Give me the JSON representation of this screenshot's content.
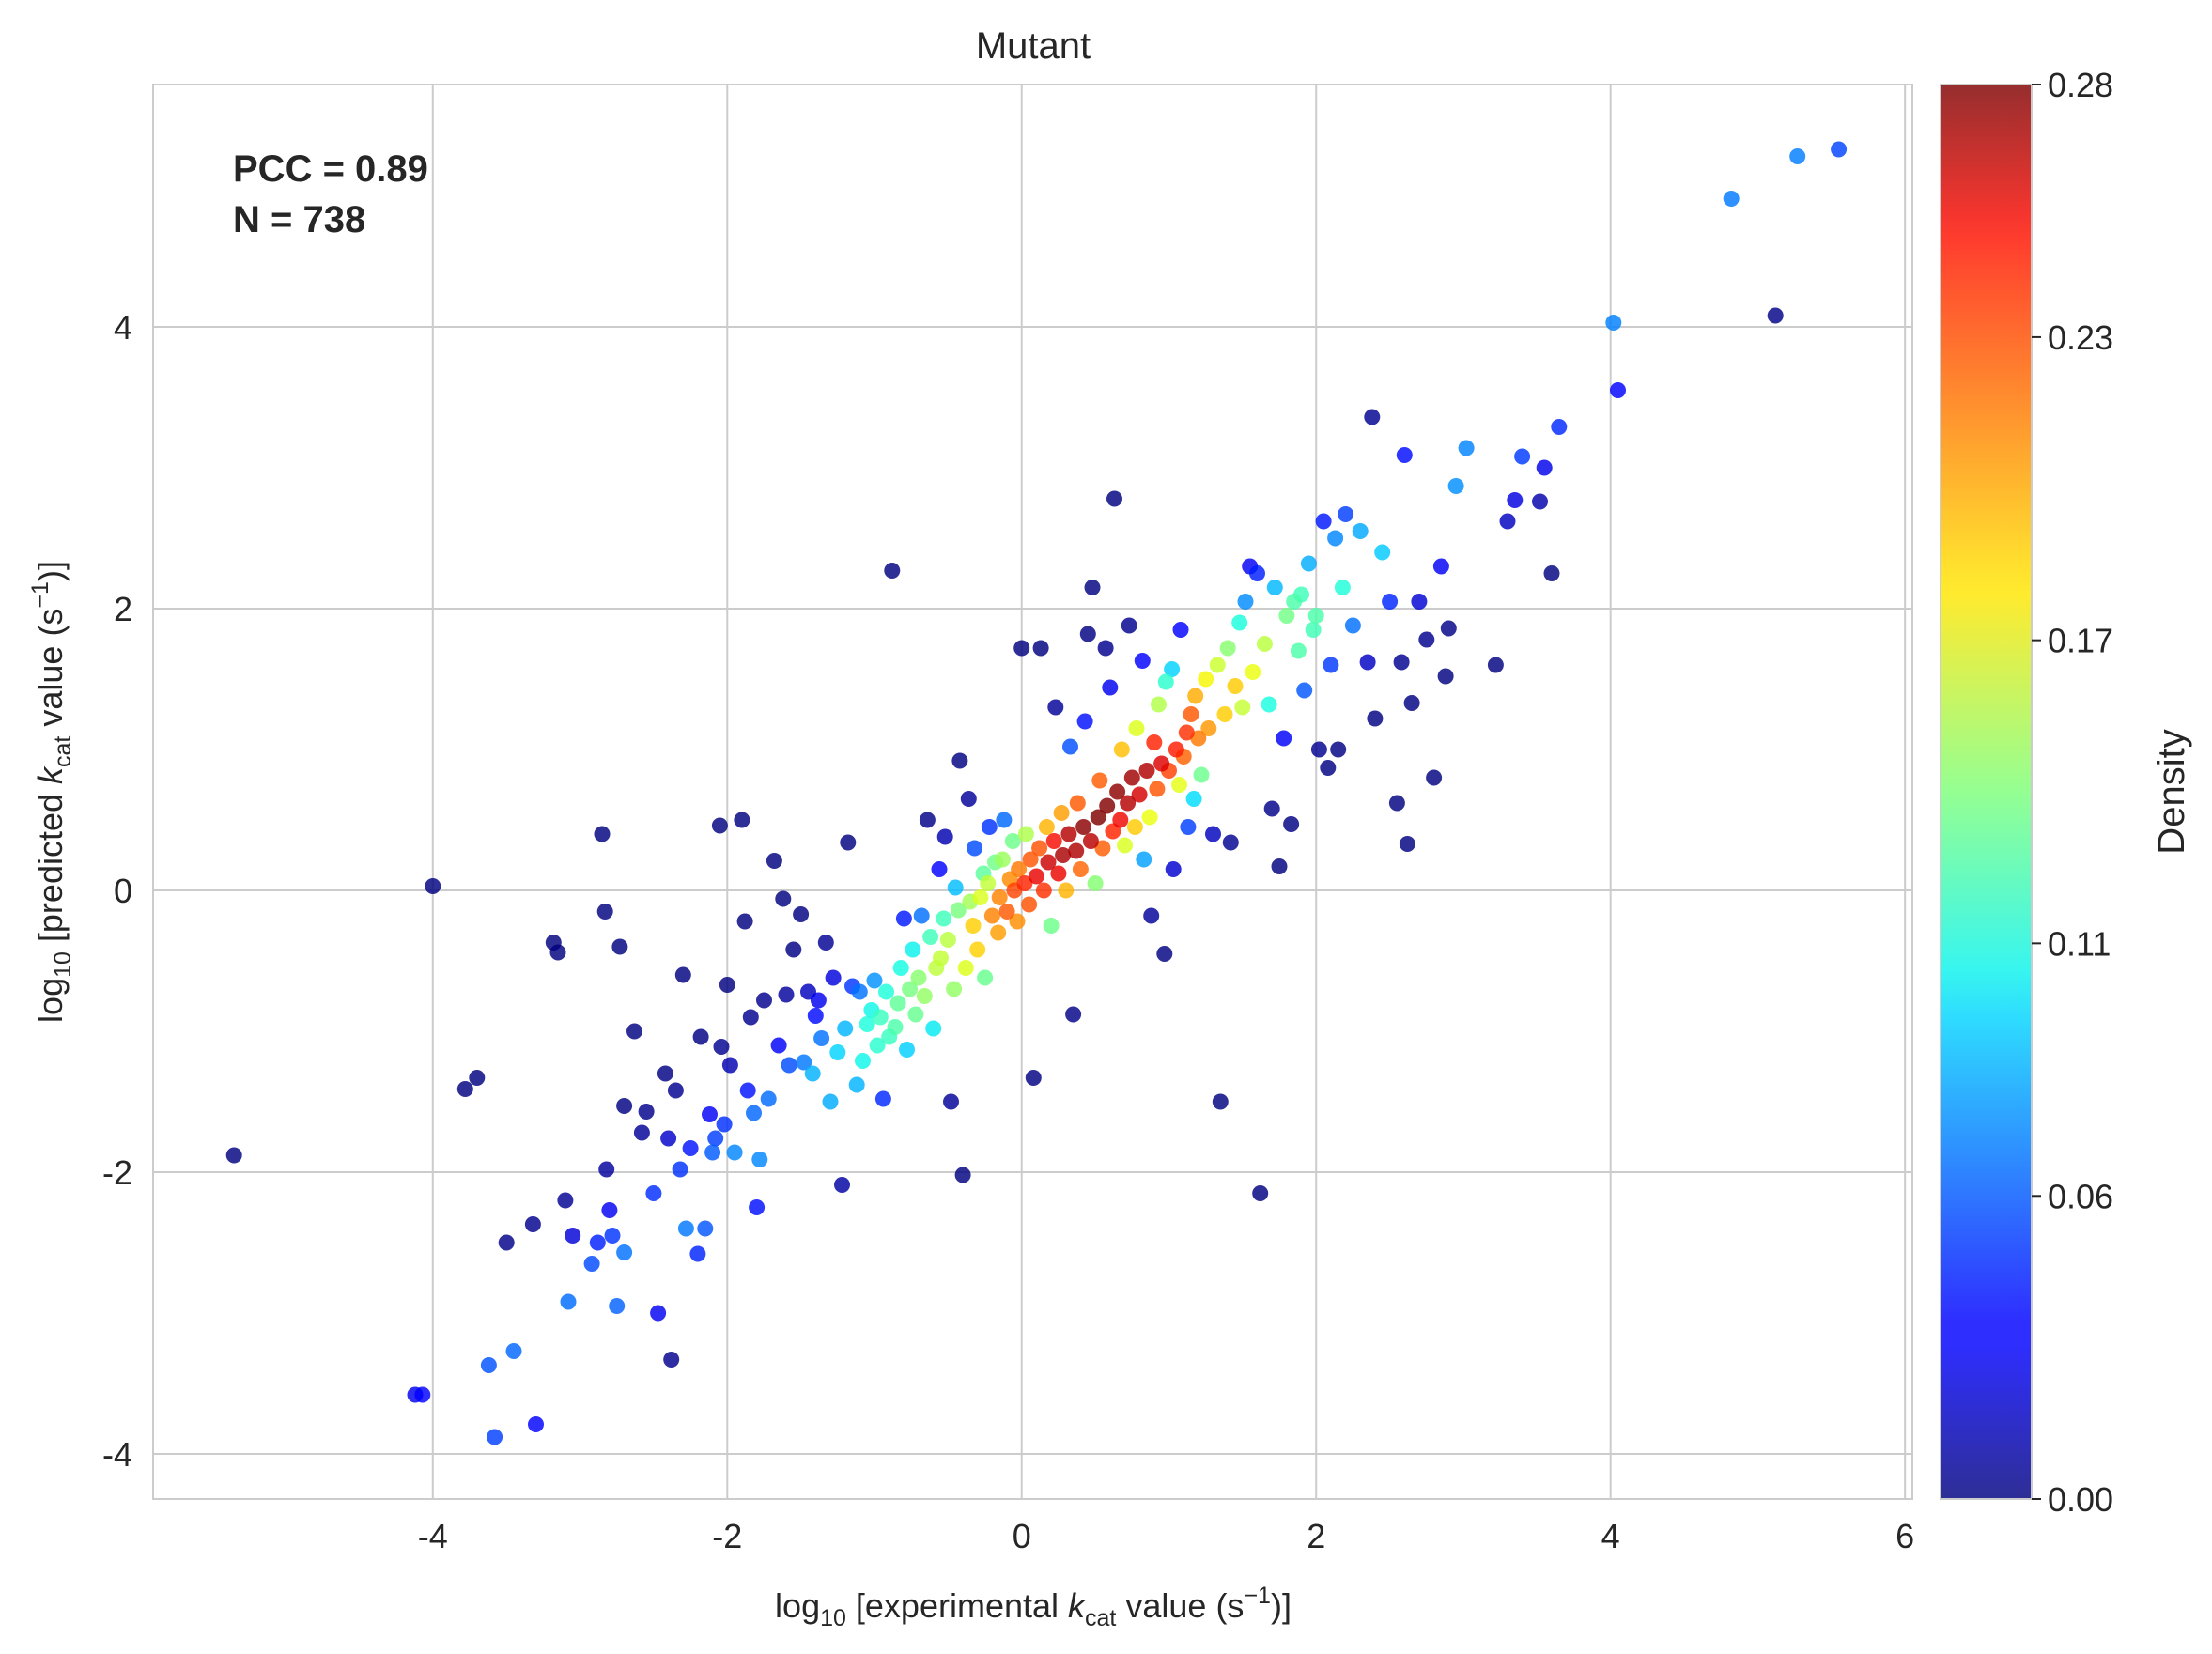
{
  "chart_data": {
    "type": "scatter",
    "title": "Mutant",
    "xlabel": {
      "prefix": "log",
      "prefix_sub": "10",
      "text_before": " [experimental ",
      "var": "k",
      "var_sub": "cat",
      "text_after": " value (s",
      "sup": "−1",
      "close": ")]"
    },
    "ylabel": {
      "prefix": "log",
      "prefix_sub": "10",
      "text_before": " [predicted ",
      "var": "k",
      "var_sub": "cat",
      "text_after": " value (s",
      "sup": "−1",
      "close": ")]"
    },
    "xlim": [
      -5.9,
      6.05
    ],
    "ylim": [
      -4.32,
      5.72
    ],
    "xticks": [
      -4,
      -2,
      0,
      2,
      4,
      6
    ],
    "xtick_labels": [
      "-4",
      "-2",
      "0",
      "2",
      "4",
      "6"
    ],
    "yticks": [
      -4,
      -2,
      0,
      2,
      4
    ],
    "ytick_labels": [
      "-4",
      "-2",
      "0",
      "2",
      "4"
    ],
    "grid": true,
    "annotation": {
      "lines": [
        "PCC = 0.89",
        "N = 738"
      ],
      "position": "top-left"
    },
    "colorbar": {
      "label": "Density",
      "colormap": "jet",
      "range": [
        0.0,
        0.28
      ],
      "ticks": [
        0.0,
        0.06,
        0.11,
        0.17,
        0.23,
        0.28
      ],
      "tick_labels": [
        "0.00",
        "0.06",
        "0.11",
        "0.17",
        "0.23",
        "0.28"
      ]
    },
    "colors": {
      "grid": "#cccccc",
      "axes_edge": "#cccccc",
      "text": "#262626"
    },
    "points": [
      [
        -5.35,
        -1.88
      ],
      [
        -4.12,
        -3.58
      ],
      [
        -4.07,
        -3.58
      ],
      [
        -4.0,
        0.03
      ],
      [
        -3.78,
        -1.41
      ],
      [
        -3.7,
        -1.33
      ],
      [
        -3.62,
        -3.37
      ],
      [
        -3.58,
        -3.88
      ],
      [
        -3.5,
        -2.5
      ],
      [
        -3.45,
        -3.27
      ],
      [
        -3.32,
        -2.37
      ],
      [
        -3.3,
        -3.79
      ],
      [
        -3.18,
        -0.37
      ],
      [
        -3.15,
        -0.44
      ],
      [
        -3.1,
        -2.2
      ],
      [
        -3.08,
        -2.92
      ],
      [
        -3.05,
        -2.45
      ],
      [
        -2.92,
        -2.65
      ],
      [
        -2.88,
        -2.5
      ],
      [
        -2.85,
        0.4
      ],
      [
        -2.83,
        -0.15
      ],
      [
        -2.82,
        -1.98
      ],
      [
        -2.8,
        -2.27
      ],
      [
        -2.78,
        -2.45
      ],
      [
        -2.75,
        -2.95
      ],
      [
        -2.73,
        -0.4
      ],
      [
        -2.7,
        -1.53
      ],
      [
        -2.7,
        -2.57
      ],
      [
        -2.63,
        -1.0
      ],
      [
        -2.58,
        -1.72
      ],
      [
        -2.55,
        -1.57
      ],
      [
        -2.5,
        -2.15
      ],
      [
        -2.47,
        -3.0
      ],
      [
        -2.42,
        -1.3
      ],
      [
        -2.4,
        -1.76
      ],
      [
        -2.38,
        -3.33
      ],
      [
        -2.35,
        -1.42
      ],
      [
        -2.32,
        -1.98
      ],
      [
        -2.3,
        -0.6
      ],
      [
        -2.28,
        -2.4
      ],
      [
        -2.25,
        -1.83
      ],
      [
        -2.2,
        -2.58
      ],
      [
        -2.18,
        -1.04
      ],
      [
        -2.15,
        -2.4
      ],
      [
        -2.12,
        -1.59
      ],
      [
        -2.1,
        -1.86
      ],
      [
        -2.08,
        -1.76
      ],
      [
        -2.05,
        0.46
      ],
      [
        -2.04,
        -1.11
      ],
      [
        -2.02,
        -1.66
      ],
      [
        -2.0,
        -0.67
      ],
      [
        -1.98,
        -1.24
      ],
      [
        -1.95,
        -1.86
      ],
      [
        -1.9,
        0.5
      ],
      [
        -1.88,
        -0.22
      ],
      [
        -1.86,
        -1.42
      ],
      [
        -1.84,
        -0.9
      ],
      [
        -1.82,
        -1.58
      ],
      [
        -1.8,
        -2.25
      ],
      [
        -1.78,
        -1.91
      ],
      [
        -1.75,
        -0.78
      ],
      [
        -1.72,
        -1.48
      ],
      [
        -1.68,
        0.21
      ],
      [
        -1.65,
        -1.1
      ],
      [
        -1.62,
        -0.06
      ],
      [
        -1.6,
        -0.74
      ],
      [
        -1.58,
        -1.24
      ],
      [
        -1.55,
        -0.42
      ],
      [
        -1.5,
        -0.17
      ],
      [
        -1.48,
        -1.22
      ],
      [
        -1.45,
        -0.72
      ],
      [
        -1.42,
        -1.3
      ],
      [
        -1.4,
        -0.89
      ],
      [
        -1.38,
        -0.78
      ],
      [
        -1.36,
        -1.05
      ],
      [
        -1.33,
        -0.37
      ],
      [
        -1.3,
        -1.5
      ],
      [
        -1.28,
        -0.62
      ],
      [
        -1.25,
        -1.15
      ],
      [
        -1.22,
        -2.09
      ],
      [
        -1.2,
        -0.98
      ],
      [
        -1.18,
        0.34
      ],
      [
        -1.15,
        -0.68
      ],
      [
        -1.12,
        -1.38
      ],
      [
        -1.1,
        -0.72
      ],
      [
        -1.08,
        -1.21
      ],
      [
        -1.05,
        -0.95
      ],
      [
        -1.02,
        -0.85
      ],
      [
        -1.0,
        -0.64
      ],
      [
        -0.98,
        -1.1
      ],
      [
        -0.96,
        -0.9
      ],
      [
        -0.94,
        -1.48
      ],
      [
        -0.92,
        -0.72
      ],
      [
        -0.9,
        -1.04
      ],
      [
        -0.88,
        2.27
      ],
      [
        -0.86,
        -0.97
      ],
      [
        -0.84,
        -0.8
      ],
      [
        -0.82,
        -0.55
      ],
      [
        -0.8,
        -0.2
      ],
      [
        -0.78,
        -1.13
      ],
      [
        -0.76,
        -0.7
      ],
      [
        -0.74,
        -0.42
      ],
      [
        -0.72,
        -0.88
      ],
      [
        -0.7,
        -0.62
      ],
      [
        -0.68,
        -0.18
      ],
      [
        -0.66,
        -0.75
      ],
      [
        -0.64,
        0.5
      ],
      [
        -0.62,
        -0.33
      ],
      [
        -0.6,
        -0.98
      ],
      [
        -0.58,
        -0.55
      ],
      [
        -0.56,
        0.15
      ],
      [
        -0.55,
        -0.48
      ],
      [
        -0.53,
        -0.2
      ],
      [
        -0.52,
        0.38
      ],
      [
        -0.5,
        -0.35
      ],
      [
        -0.48,
        -1.5
      ],
      [
        -0.46,
        -0.7
      ],
      [
        -0.45,
        0.02
      ],
      [
        -0.43,
        -0.14
      ],
      [
        -0.42,
        0.92
      ],
      [
        -0.4,
        -2.02
      ],
      [
        -0.38,
        -0.55
      ],
      [
        -0.36,
        0.65
      ],
      [
        -0.35,
        -0.08
      ],
      [
        -0.33,
        -0.25
      ],
      [
        -0.32,
        0.3
      ],
      [
        -0.3,
        -0.42
      ],
      [
        -0.28,
        -0.05
      ],
      [
        -0.26,
        0.12
      ],
      [
        -0.25,
        -0.62
      ],
      [
        -0.23,
        0.05
      ],
      [
        -0.22,
        0.45
      ],
      [
        -0.2,
        -0.18
      ],
      [
        -0.18,
        0.2
      ],
      [
        -0.16,
        -0.3
      ],
      [
        -0.15,
        -0.05
      ],
      [
        -0.13,
        0.22
      ],
      [
        -0.12,
        0.5
      ],
      [
        -0.1,
        -0.15
      ],
      [
        -0.08,
        0.08
      ],
      [
        -0.06,
        0.35
      ],
      [
        -0.05,
        0.0
      ],
      [
        -0.03,
        -0.22
      ],
      [
        -0.02,
        0.15
      ],
      [
        0.0,
        1.72
      ],
      [
        0.02,
        0.05
      ],
      [
        0.03,
        0.4
      ],
      [
        0.05,
        -0.1
      ],
      [
        0.06,
        0.22
      ],
      [
        0.08,
        -1.33
      ],
      [
        0.1,
        0.1
      ],
      [
        0.12,
        0.3
      ],
      [
        0.13,
        1.72
      ],
      [
        0.15,
        0.0
      ],
      [
        0.17,
        0.45
      ],
      [
        0.18,
        0.2
      ],
      [
        0.2,
        -0.25
      ],
      [
        0.22,
        0.35
      ],
      [
        0.23,
        1.3
      ],
      [
        0.25,
        0.12
      ],
      [
        0.27,
        0.55
      ],
      [
        0.28,
        0.25
      ],
      [
        0.3,
        0.0
      ],
      [
        0.32,
        0.4
      ],
      [
        0.33,
        1.02
      ],
      [
        0.35,
        -0.88
      ],
      [
        0.37,
        0.28
      ],
      [
        0.38,
        0.62
      ],
      [
        0.4,
        0.15
      ],
      [
        0.42,
        0.45
      ],
      [
        0.43,
        1.2
      ],
      [
        0.45,
        1.82
      ],
      [
        0.47,
        0.35
      ],
      [
        0.48,
        2.15
      ],
      [
        0.5,
        0.05
      ],
      [
        0.52,
        0.52
      ],
      [
        0.53,
        0.78
      ],
      [
        0.55,
        0.3
      ],
      [
        0.57,
        1.72
      ],
      [
        0.58,
        0.6
      ],
      [
        0.6,
        1.44
      ],
      [
        0.62,
        0.42
      ],
      [
        0.63,
        2.78
      ],
      [
        0.65,
        0.7
      ],
      [
        0.67,
        0.5
      ],
      [
        0.68,
        1.0
      ],
      [
        0.7,
        0.32
      ],
      [
        0.72,
        0.62
      ],
      [
        0.73,
        1.88
      ],
      [
        0.75,
        0.8
      ],
      [
        0.77,
        0.45
      ],
      [
        0.78,
        1.15
      ],
      [
        0.8,
        0.68
      ],
      [
        0.82,
        1.63
      ],
      [
        0.83,
        0.22
      ],
      [
        0.85,
        0.85
      ],
      [
        0.87,
        0.52
      ],
      [
        0.88,
        -0.18
      ],
      [
        0.9,
        1.05
      ],
      [
        0.92,
        0.72
      ],
      [
        0.93,
        1.32
      ],
      [
        0.95,
        0.9
      ],
      [
        0.97,
        -0.45
      ],
      [
        0.98,
        1.48
      ],
      [
        1.0,
        0.85
      ],
      [
        1.02,
        1.57
      ],
      [
        1.03,
        0.15
      ],
      [
        1.05,
        1.0
      ],
      [
        1.07,
        0.75
      ],
      [
        1.08,
        1.85
      ],
      [
        1.1,
        0.95
      ],
      [
        1.12,
        1.12
      ],
      [
        1.13,
        0.45
      ],
      [
        1.15,
        1.25
      ],
      [
        1.17,
        0.65
      ],
      [
        1.18,
        1.38
      ],
      [
        1.2,
        1.08
      ],
      [
        1.22,
        0.82
      ],
      [
        1.25,
        1.5
      ],
      [
        1.27,
        1.15
      ],
      [
        1.3,
        0.4
      ],
      [
        1.33,
        1.6
      ],
      [
        1.35,
        -1.5
      ],
      [
        1.38,
        1.25
      ],
      [
        1.4,
        1.72
      ],
      [
        1.42,
        0.34
      ],
      [
        1.45,
        1.45
      ],
      [
        1.48,
        1.9
      ],
      [
        1.5,
        1.3
      ],
      [
        1.52,
        2.05
      ],
      [
        1.55,
        2.3
      ],
      [
        1.57,
        1.55
      ],
      [
        1.6,
        2.25
      ],
      [
        1.62,
        -2.15
      ],
      [
        1.65,
        1.75
      ],
      [
        1.68,
        1.32
      ],
      [
        1.7,
        0.58
      ],
      [
        1.72,
        2.15
      ],
      [
        1.75,
        0.17
      ],
      [
        1.78,
        1.08
      ],
      [
        1.8,
        1.95
      ],
      [
        1.83,
        0.47
      ],
      [
        1.85,
        2.05
      ],
      [
        1.88,
        1.7
      ],
      [
        1.9,
        2.1
      ],
      [
        1.92,
        1.42
      ],
      [
        1.95,
        2.32
      ],
      [
        1.98,
        1.85
      ],
      [
        2.0,
        1.95
      ],
      [
        2.02,
        1.0
      ],
      [
        2.05,
        2.62
      ],
      [
        2.08,
        0.87
      ],
      [
        2.1,
        1.6
      ],
      [
        2.13,
        2.5
      ],
      [
        2.15,
        1.0
      ],
      [
        2.18,
        2.15
      ],
      [
        2.2,
        2.67
      ],
      [
        2.25,
        1.88
      ],
      [
        2.3,
        2.55
      ],
      [
        2.35,
        1.62
      ],
      [
        2.38,
        3.36
      ],
      [
        2.4,
        1.22
      ],
      [
        2.45,
        2.4
      ],
      [
        2.5,
        2.05
      ],
      [
        2.55,
        0.62
      ],
      [
        2.58,
        1.62
      ],
      [
        2.6,
        3.09
      ],
      [
        2.62,
        0.33
      ],
      [
        2.65,
        1.33
      ],
      [
        2.7,
        2.05
      ],
      [
        2.75,
        1.78
      ],
      [
        2.8,
        0.8
      ],
      [
        2.85,
        2.3
      ],
      [
        2.88,
        1.52
      ],
      [
        2.9,
        1.86
      ],
      [
        2.95,
        2.87
      ],
      [
        3.02,
        3.14
      ],
      [
        3.22,
        1.6
      ],
      [
        3.3,
        2.62
      ],
      [
        3.35,
        2.77
      ],
      [
        3.4,
        3.08
      ],
      [
        3.52,
        2.76
      ],
      [
        3.55,
        3.0
      ],
      [
        3.6,
        2.25
      ],
      [
        3.65,
        3.29
      ],
      [
        4.02,
        4.03
      ],
      [
        4.05,
        3.55
      ],
      [
        4.82,
        4.91
      ],
      [
        5.12,
        4.08
      ],
      [
        5.27,
        5.21
      ],
      [
        5.55,
        5.26
      ]
    ]
  }
}
